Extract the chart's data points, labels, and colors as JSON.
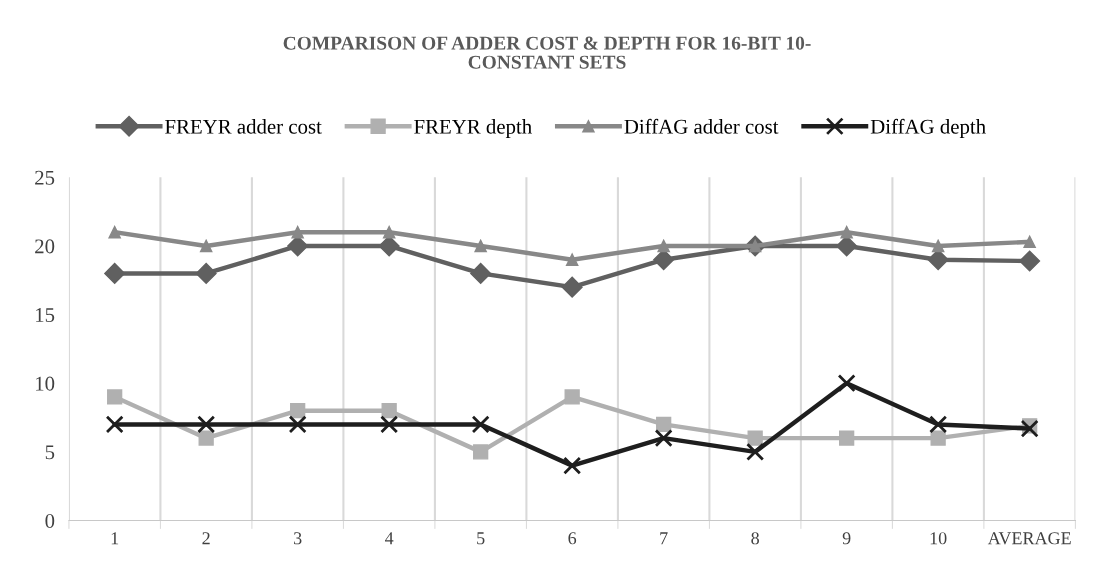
{
  "chart_data": {
    "type": "line",
    "title": "COMPARISON OF ADDER COST & DEPTH FOR 16-BIT 10-\nCONSTANT SETS",
    "categories": [
      "1",
      "2",
      "3",
      "4",
      "5",
      "6",
      "7",
      "8",
      "9",
      "10",
      "AVERAGE"
    ],
    "series": [
      {
        "name": "FREYR adder cost",
        "color": "#606060",
        "marker": "diamond",
        "values": [
          18,
          18,
          20,
          20,
          18,
          17,
          19,
          20,
          20,
          19,
          18.9
        ]
      },
      {
        "name": "FREYR depth",
        "color": "#b0b0b0",
        "marker": "square",
        "values": [
          9,
          6,
          8,
          8,
          5,
          9,
          7,
          6,
          6,
          6,
          6.9
        ]
      },
      {
        "name": "DiffAG adder cost",
        "color": "#888888",
        "marker": "triangle",
        "values": [
          21,
          20,
          21,
          21,
          20,
          19,
          20,
          20,
          21,
          20,
          20.3
        ]
      },
      {
        "name": "DiffAG depth",
        "color": "#1e1e1e",
        "marker": "cross",
        "values": [
          7,
          7,
          7,
          7,
          7,
          4,
          6,
          5,
          10,
          7,
          6.7
        ]
      }
    ],
    "ylim": [
      0,
      25
    ],
    "yticks": [
      0,
      5,
      10,
      15,
      20,
      25
    ],
    "grid": "x",
    "legend": "top",
    "line_style": "solid"
  }
}
